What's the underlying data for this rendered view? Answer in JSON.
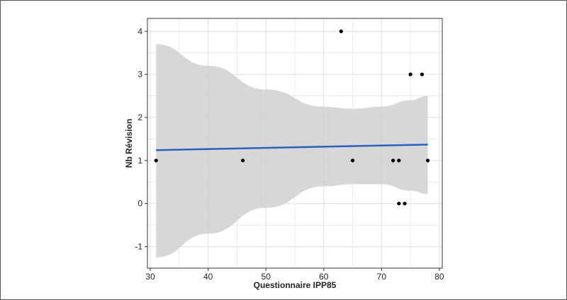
{
  "chart_data": {
    "type": "scatter",
    "title": "",
    "xlabel": "Questionnaire IPP85",
    "ylabel": "Nb Révision",
    "xlim": [
      29.5,
      80.5
    ],
    "ylim": [
      -1.5,
      4.3
    ],
    "x_ticks": [
      30,
      40,
      50,
      60,
      70,
      80
    ],
    "y_ticks": [
      -1,
      0,
      1,
      2,
      3,
      4
    ],
    "grid": true,
    "legend": "none",
    "points": [
      {
        "x": 31,
        "y": 1
      },
      {
        "x": 46,
        "y": 1
      },
      {
        "x": 63,
        "y": 4
      },
      {
        "x": 65,
        "y": 1
      },
      {
        "x": 72,
        "y": 1
      },
      {
        "x": 73,
        "y": 1
      },
      {
        "x": 73,
        "y": 0
      },
      {
        "x": 74,
        "y": 0
      },
      {
        "x": 75,
        "y": 3
      },
      {
        "x": 77,
        "y": 3
      },
      {
        "x": 78,
        "y": 1
      }
    ],
    "fit_line": {
      "x": [
        31,
        78
      ],
      "y": [
        1.24,
        1.37
      ]
    },
    "confidence_band": {
      "x": [
        31,
        40,
        50,
        60,
        65,
        70,
        75,
        78
      ],
      "upper": [
        3.7,
        3.2,
        2.65,
        2.25,
        2.2,
        2.25,
        2.4,
        2.5
      ],
      "lower": [
        -1.25,
        -0.7,
        -0.1,
        0.4,
        0.45,
        0.45,
        0.3,
        0.22
      ]
    },
    "colors": {
      "point": "#000000",
      "fit_line": "#2b5fbd",
      "band": "#d3d3d3",
      "grid": "#dedede",
      "panel_border": "#333333"
    }
  }
}
